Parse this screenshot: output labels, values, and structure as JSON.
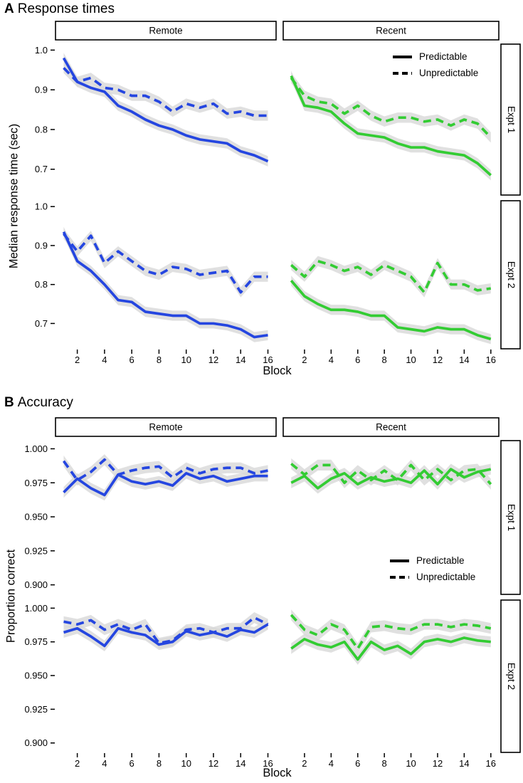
{
  "chart_data": [
    {
      "id": "A",
      "type": "line",
      "panel_label": "A",
      "title": "Response times",
      "xlabel": "Block",
      "ylabel": "Median response time (sec)",
      "x": [
        1,
        2,
        3,
        4,
        5,
        6,
        7,
        8,
        9,
        10,
        11,
        12,
        13,
        14,
        15,
        16
      ],
      "xticks": [
        2,
        4,
        6,
        8,
        10,
        12,
        14,
        16
      ],
      "xlim": [
        0.4,
        16.6
      ],
      "yticks": [
        0.7,
        0.8,
        0.9,
        1.0
      ],
      "ytick_labels": [
        "0.7",
        "0.8",
        "0.9",
        "1.0"
      ],
      "ylim": [
        0.635,
        1.015
      ],
      "col_facets": [
        "Remote",
        "Recent"
      ],
      "row_facets": [
        "Expt 1",
        "Expt 2"
      ],
      "colors": {
        "Remote": "#2546e0",
        "Recent": "#33cc33"
      },
      "ribbon_color": "#d8d8d8",
      "band_halfwidth": 0.013,
      "legend": [
        "Predictable",
        "Unpredictable"
      ],
      "facets": [
        {
          "row": "Expt 1",
          "col": "Remote",
          "series": [
            {
              "name": "Predictable",
              "style": "solid",
              "values": [
                0.98,
                0.92,
                0.905,
                0.895,
                0.86,
                0.845,
                0.825,
                0.81,
                0.8,
                0.785,
                0.775,
                0.77,
                0.765,
                0.745,
                0.735,
                0.72
              ]
            },
            {
              "name": "Unpredictable",
              "style": "dashed",
              "values": [
                0.955,
                0.92,
                0.93,
                0.905,
                0.9,
                0.885,
                0.885,
                0.87,
                0.845,
                0.865,
                0.855,
                0.865,
                0.84,
                0.845,
                0.835,
                0.835
              ]
            }
          ]
        },
        {
          "row": "Expt 1",
          "col": "Recent",
          "series": [
            {
              "name": "Predictable",
              "style": "solid",
              "values": [
                0.935,
                0.86,
                0.855,
                0.845,
                0.815,
                0.79,
                0.785,
                0.78,
                0.765,
                0.755,
                0.755,
                0.745,
                0.74,
                0.735,
                0.715,
                0.685
              ]
            },
            {
              "name": "Unpredictable",
              "style": "dashed",
              "values": [
                0.93,
                0.885,
                0.87,
                0.865,
                0.84,
                0.86,
                0.835,
                0.82,
                0.83,
                0.83,
                0.82,
                0.825,
                0.81,
                0.825,
                0.815,
                0.78
              ]
            }
          ]
        },
        {
          "row": "Expt 2",
          "col": "Remote",
          "series": [
            {
              "name": "Predictable",
              "style": "solid",
              "values": [
                0.935,
                0.86,
                0.835,
                0.8,
                0.76,
                0.755,
                0.73,
                0.725,
                0.72,
                0.72,
                0.7,
                0.7,
                0.695,
                0.685,
                0.665,
                0.67
              ]
            },
            {
              "name": "Unpredictable",
              "style": "dashed",
              "values": [
                0.93,
                0.885,
                0.925,
                0.855,
                0.885,
                0.86,
                0.835,
                0.825,
                0.845,
                0.84,
                0.825,
                0.83,
                0.835,
                0.78,
                0.82,
                0.82
              ]
            }
          ]
        },
        {
          "row": "Expt 2",
          "col": "Recent",
          "series": [
            {
              "name": "Predictable",
              "style": "solid",
              "values": [
                0.81,
                0.77,
                0.75,
                0.735,
                0.735,
                0.73,
                0.72,
                0.72,
                0.69,
                0.685,
                0.68,
                0.69,
                0.685,
                0.685,
                0.67,
                0.66
              ]
            },
            {
              "name": "Unpredictable",
              "style": "dashed",
              "values": [
                0.85,
                0.82,
                0.86,
                0.85,
                0.835,
                0.845,
                0.825,
                0.85,
                0.835,
                0.82,
                0.78,
                0.855,
                0.8,
                0.8,
                0.785,
                0.79
              ]
            }
          ]
        }
      ]
    },
    {
      "id": "B",
      "type": "line",
      "panel_label": "B",
      "title": "Accuracy",
      "xlabel": "Block",
      "ylabel": "Proportion correct",
      "x": [
        1,
        2,
        3,
        4,
        5,
        6,
        7,
        8,
        9,
        10,
        11,
        12,
        13,
        14,
        15,
        16
      ],
      "xticks": [
        2,
        4,
        6,
        8,
        10,
        12,
        14,
        16
      ],
      "xlim": [
        0.4,
        16.6
      ],
      "yticks": [
        0.9,
        0.925,
        0.95,
        0.975,
        1.0
      ],
      "ytick_labels": [
        "0.900",
        "0.925",
        "0.950",
        "0.975",
        "1.000"
      ],
      "ylim": [
        0.893,
        1.006
      ],
      "col_facets": [
        "Remote",
        "Recent"
      ],
      "row_facets": [
        "Expt 1",
        "Expt 2"
      ],
      "colors": {
        "Remote": "#2546e0",
        "Recent": "#33cc33"
      },
      "ribbon_color": "#d8d8d8",
      "band_halfwidth": 0.004,
      "legend": [
        "Predictable",
        "Unpredictable"
      ],
      "facets": [
        {
          "row": "Expt 1",
          "col": "Remote",
          "series": [
            {
              "name": "Predictable",
              "style": "solid",
              "values": [
                0.968,
                0.978,
                0.971,
                0.966,
                0.981,
                0.976,
                0.974,
                0.976,
                0.973,
                0.982,
                0.978,
                0.98,
                0.976,
                0.978,
                0.98,
                0.98
              ]
            },
            {
              "name": "Unpredictable",
              "style": "dashed",
              "values": [
                0.991,
                0.977,
                0.983,
                0.992,
                0.981,
                0.984,
                0.986,
                0.987,
                0.979,
                0.986,
                0.982,
                0.985,
                0.986,
                0.986,
                0.982,
                0.984
              ]
            }
          ]
        },
        {
          "row": "Expt 1",
          "col": "Recent",
          "series": [
            {
              "name": "Predictable",
              "style": "solid",
              "values": [
                0.975,
                0.98,
                0.971,
                0.978,
                0.982,
                0.974,
                0.979,
                0.976,
                0.978,
                0.975,
                0.984,
                0.974,
                0.985,
                0.979,
                0.983,
                0.985
              ]
            },
            {
              "name": "Unpredictable",
              "style": "dashed",
              "values": [
                0.989,
                0.981,
                0.988,
                0.988,
                0.975,
                0.984,
                0.977,
                0.984,
                0.977,
                0.988,
                0.977,
                0.985,
                0.977,
                0.984,
                0.985,
                0.974
              ]
            }
          ]
        },
        {
          "row": "Expt 2",
          "col": "Remote",
          "series": [
            {
              "name": "Predictable",
              "style": "solid",
              "values": [
                0.982,
                0.985,
                0.979,
                0.972,
                0.985,
                0.982,
                0.98,
                0.973,
                0.975,
                0.983,
                0.98,
                0.982,
                0.979,
                0.984,
                0.982,
                0.988
              ]
            },
            {
              "name": "Unpredictable",
              "style": "dashed",
              "values": [
                0.99,
                0.988,
                0.991,
                0.984,
                0.988,
                0.984,
                0.988,
                0.974,
                0.976,
                0.984,
                0.985,
                0.982,
                0.985,
                0.985,
                0.993,
                0.988
              ]
            }
          ]
        },
        {
          "row": "Expt 2",
          "col": "Recent",
          "series": [
            {
              "name": "Predictable",
              "style": "solid",
              "values": [
                0.97,
                0.977,
                0.973,
                0.971,
                0.975,
                0.962,
                0.975,
                0.969,
                0.972,
                0.966,
                0.975,
                0.977,
                0.975,
                0.978,
                0.976,
                0.975
              ]
            },
            {
              "name": "Unpredictable",
              "style": "dashed",
              "values": [
                0.995,
                0.984,
                0.98,
                0.988,
                0.984,
                0.97,
                0.986,
                0.987,
                0.985,
                0.984,
                0.988,
                0.988,
                0.986,
                0.988,
                0.987,
                0.985
              ]
            }
          ]
        }
      ]
    }
  ]
}
